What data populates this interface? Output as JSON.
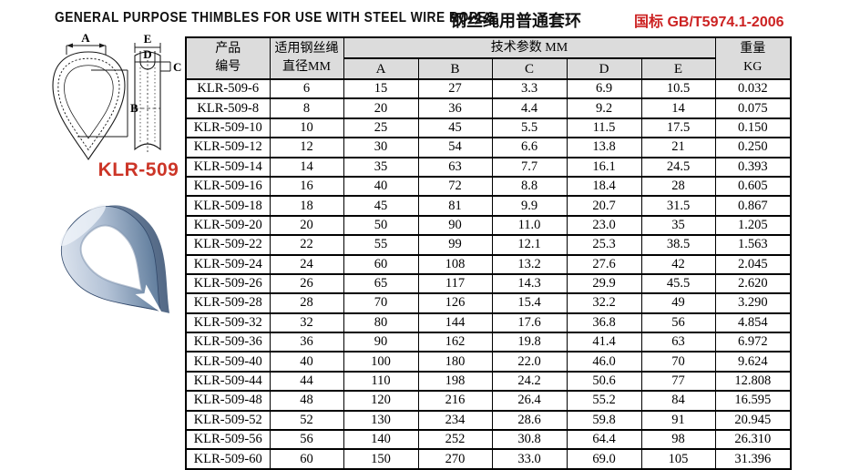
{
  "header": {
    "title_en": "GENERAL PURPOSE THIMBLES FOR USE WITH STEEL WIRE ROPES",
    "title_zh": "钢丝绳用普通套环",
    "standard_label": "国标 GB/T5974.1-2006"
  },
  "colors": {
    "standard_red": "#cc2222",
    "model_red": "#cc3527",
    "table_header_bg": "#dcdcdc",
    "photo_steel_blue": "#6d87a8"
  },
  "drawing": {
    "model_label": "KLR-509",
    "dim_a": "A",
    "dim_b": "B",
    "dim_c": "C",
    "dim_d": "D",
    "dim_e": "E",
    "front_view": "thimble-front-view",
    "side_view": "thimble-groove-profile",
    "photo": "galvanized-steel-thimble-photo"
  },
  "table": {
    "header": {
      "product_line1": "产品",
      "product_line2": "编号",
      "diameter_line1": "适用钢丝绳",
      "diameter_line2": "直径MM",
      "tech_params": "技术参数 MM",
      "sub_columns": [
        "A",
        "B",
        "C",
        "D",
        "E"
      ],
      "weight_line1": "重量",
      "weight_line2": "KG"
    },
    "rows": [
      [
        "KLR-509-6",
        "6",
        "15",
        "27",
        "3.3",
        "6.9",
        "10.5",
        "0.032"
      ],
      [
        "KLR-509-8",
        "8",
        "20",
        "36",
        "4.4",
        "9.2",
        "14",
        "0.075"
      ],
      [
        "KLR-509-10",
        "10",
        "25",
        "45",
        "5.5",
        "11.5",
        "17.5",
        "0.150"
      ],
      [
        "KLR-509-12",
        "12",
        "30",
        "54",
        "6.6",
        "13.8",
        "21",
        "0.250"
      ],
      [
        "KLR-509-14",
        "14",
        "35",
        "63",
        "7.7",
        "16.1",
        "24.5",
        "0.393"
      ],
      [
        "KLR-509-16",
        "16",
        "40",
        "72",
        "8.8",
        "18.4",
        "28",
        "0.605"
      ],
      [
        "KLR-509-18",
        "18",
        "45",
        "81",
        "9.9",
        "20.7",
        "31.5",
        "0.867"
      ],
      [
        "KLR-509-20",
        "20",
        "50",
        "90",
        "11.0",
        "23.0",
        "35",
        "1.205"
      ],
      [
        "KLR-509-22",
        "22",
        "55",
        "99",
        "12.1",
        "25.3",
        "38.5",
        "1.563"
      ],
      [
        "KLR-509-24",
        "24",
        "60",
        "108",
        "13.2",
        "27.6",
        "42",
        "2.045"
      ],
      [
        "KLR-509-26",
        "26",
        "65",
        "117",
        "14.3",
        "29.9",
        "45.5",
        "2.620"
      ],
      [
        "KLR-509-28",
        "28",
        "70",
        "126",
        "15.4",
        "32.2",
        "49",
        "3.290"
      ],
      [
        "KLR-509-32",
        "32",
        "80",
        "144",
        "17.6",
        "36.8",
        "56",
        "4.854"
      ],
      [
        "KLR-509-36",
        "36",
        "90",
        "162",
        "19.8",
        "41.4",
        "63",
        "6.972"
      ],
      [
        "KLR-509-40",
        "40",
        "100",
        "180",
        "22.0",
        "46.0",
        "70",
        "9.624"
      ],
      [
        "KLR-509-44",
        "44",
        "110",
        "198",
        "24.2",
        "50.6",
        "77",
        "12.808"
      ],
      [
        "KLR-509-48",
        "48",
        "120",
        "216",
        "26.4",
        "55.2",
        "84",
        "16.595"
      ],
      [
        "KLR-509-52",
        "52",
        "130",
        "234",
        "28.6",
        "59.8",
        "91",
        "20.945"
      ],
      [
        "KLR-509-56",
        "56",
        "140",
        "252",
        "30.8",
        "64.4",
        "98",
        "26.310"
      ],
      [
        "KLR-509-60",
        "60",
        "150",
        "270",
        "33.0",
        "69.0",
        "105",
        "31.396"
      ]
    ]
  }
}
